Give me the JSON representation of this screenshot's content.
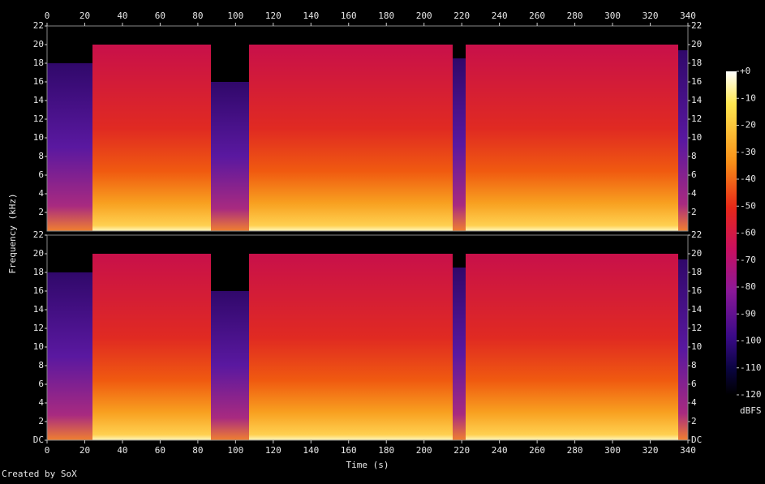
{
  "chart_data": {
    "type": "spectrogram",
    "x_label": "Time (s)",
    "y_label": "Frequency (kHz)",
    "xlim": [
      0,
      340
    ],
    "xticks": [
      0,
      20,
      40,
      60,
      80,
      100,
      120,
      140,
      160,
      180,
      200,
      220,
      240,
      260,
      280,
      300,
      320,
      340
    ],
    "panels": [
      {
        "ylim": [
          0,
          22
        ],
        "yticks": [
          2,
          4,
          6,
          8,
          10,
          12,
          14,
          16,
          18,
          20,
          22
        ]
      },
      {
        "ylim": [
          0,
          22
        ],
        "yticks": [
          {
            "value": 0,
            "label": "DC"
          },
          2,
          4,
          6,
          8,
          10,
          12,
          14,
          16,
          18,
          20,
          22
        ]
      }
    ],
    "colorbar": {
      "label": "dBFS",
      "lim": [
        -120,
        0
      ],
      "ticks": [
        {
          "value": 0,
          "label": "+0"
        },
        -10,
        -20,
        -30,
        -40,
        -50,
        -60,
        -70,
        -80,
        -90,
        -100,
        -110,
        -120
      ]
    },
    "footer": "Created by SoX"
  }
}
